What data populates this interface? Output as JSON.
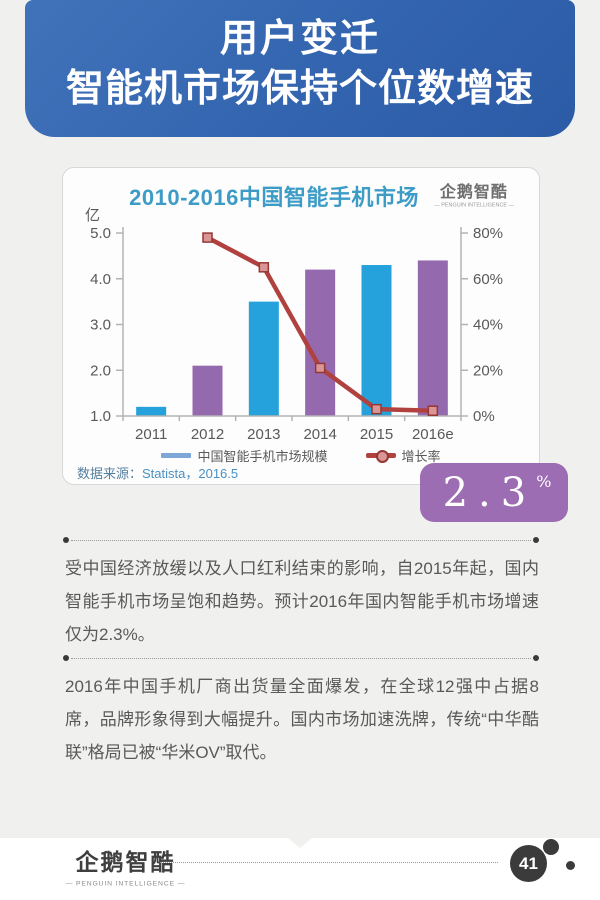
{
  "banner": {
    "line1": "用户变迁",
    "line2": "智能机市场保持个位数增速"
  },
  "chart_card": {
    "title": "2010-2016中国智能手机市场",
    "logo_name": "企鹅智酷",
    "logo_tagline": "— PENGUIN INTELLIGENCE —",
    "legend": [
      {
        "label": "中国智能手机市场规模",
        "swatch_color": "#7ea7d8"
      },
      {
        "label": "增长率",
        "swatch_color": "#b0413e"
      }
    ],
    "source_prefix": "数据来源：",
    "source_value": "Statista，2016.5"
  },
  "chart_data": {
    "type": "bar",
    "title": "2010-2016中国智能手机市场",
    "categories": [
      "2011",
      "2012",
      "2013",
      "2014",
      "2015",
      "2016e"
    ],
    "series": [
      {
        "name": "中国智能手机市场规模",
        "type": "bar",
        "unit": "亿",
        "axis": "left",
        "values": [
          1.2,
          2.1,
          3.5,
          4.2,
          4.3,
          4.4
        ],
        "colors": [
          "#25a2db",
          "#9469ae",
          "#25a2db",
          "#9469ae",
          "#25a2db",
          "#9469ae"
        ]
      },
      {
        "name": "增长率",
        "type": "line",
        "unit": "%",
        "axis": "right",
        "values": [
          null,
          78,
          65,
          21,
          3,
          2.3
        ],
        "color": "#b0413e",
        "marker_fill": "#d99694",
        "marker_stroke": "#953735"
      }
    ],
    "left_axis": {
      "label": "亿",
      "min": 1.0,
      "max": 5.0,
      "ticks": [
        1.0,
        2.0,
        3.0,
        4.0,
        5.0
      ]
    },
    "right_axis": {
      "min": 0,
      "max": 80,
      "ticks": [
        "0%",
        "20%",
        "40%",
        "60%",
        "80%"
      ]
    },
    "grid": false,
    "legend_position": "bottom"
  },
  "highlight": {
    "value": "2.3",
    "unit": "%"
  },
  "paragraphs": [
    "受中国经济放缓以及人口红利结束的影响，自2015年起，国内智能手机市场呈饱和趋势。预计2016年国内智能手机市场增速仅为2.3%。",
    "2016年中国手机厂商出货量全面爆发，在全球12强中占据8席，品牌形象得到大幅提升。国内市场加速洗牌，传统“中华酷联”格局已被“华米OV”取代。"
  ],
  "footer": {
    "logo_name": "企鹅智酷",
    "logo_tagline": "— PENGUIN INTELLIGENCE —",
    "page_number": "41"
  }
}
